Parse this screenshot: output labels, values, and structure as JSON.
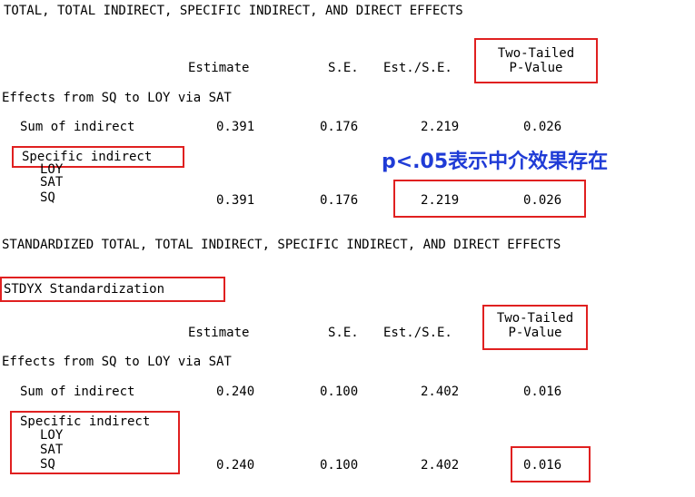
{
  "heading_total": "TOTAL, TOTAL INDIRECT, SPECIFIC INDIRECT, AND DIRECT EFFECTS",
  "heading_standardized": "STANDARDIZED TOTAL, TOTAL INDIRECT, SPECIFIC INDIRECT, AND DIRECT EFFECTS",
  "stdyx_label": "STDYX Standardization",
  "annotation": "p<.05表示中介效果存在",
  "colors": {
    "highlight_box": "#e02020",
    "annotation_text": "#1f3bd6"
  },
  "columns": {
    "estimate": "Estimate",
    "se": "S.E.",
    "est_se": "Est./S.E.",
    "pvalue_line1": "Two-Tailed",
    "pvalue_line2": "P-Value"
  },
  "unstandardized": {
    "effects_title": "Effects from SQ to LOY via SAT",
    "sum_label": "Sum of indirect",
    "sum": {
      "estimate": "0.391",
      "se": "0.176",
      "est_se": "2.219",
      "pvalue": "0.026"
    },
    "specific_label": "Specific indirect",
    "path": [
      "LOY",
      "SAT",
      "SQ"
    ],
    "specific": {
      "estimate": "0.391",
      "se": "0.176",
      "est_se": "2.219",
      "pvalue": "0.026"
    }
  },
  "standardized": {
    "effects_title": "Effects from SQ to LOY via SAT",
    "sum_label": "Sum of indirect",
    "sum": {
      "estimate": "0.240",
      "se": "0.100",
      "est_se": "2.402",
      "pvalue": "0.016"
    },
    "specific_label": "Specific indirect",
    "path": [
      "LOY",
      "SAT",
      "SQ"
    ],
    "specific": {
      "estimate": "0.240",
      "se": "0.100",
      "est_se": "2.402",
      "pvalue": "0.016"
    }
  }
}
